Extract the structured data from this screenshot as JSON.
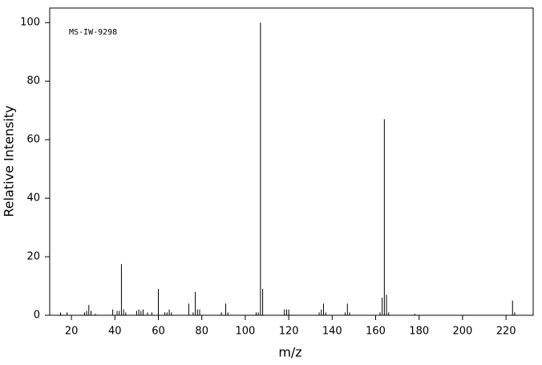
{
  "chart_data": {
    "type": "stick",
    "annotation": "MS-IW-9298",
    "xlabel": "m/z",
    "ylabel": "Relative Intensity",
    "color": "#000000",
    "x": [
      15,
      18,
      26,
      27,
      28,
      29,
      31,
      39,
      41,
      42,
      43,
      44,
      45,
      50,
      51,
      52,
      53,
      55,
      57,
      60,
      63,
      64,
      65,
      66,
      74,
      76,
      77,
      78,
      79,
      89,
      91,
      92,
      105,
      106,
      107,
      108,
      118,
      119,
      120,
      134,
      135,
      136,
      137,
      146,
      147,
      148,
      162,
      163,
      164,
      165,
      166,
      178,
      223,
      224
    ],
    "values": [
      1,
      1,
      1,
      1.5,
      3.5,
      1.5,
      0.5,
      2,
      1.5,
      1.5,
      17.5,
      2,
      1,
      1.5,
      2,
      1.5,
      2,
      1,
      1,
      9,
      1,
      1,
      2,
      1,
      4,
      1,
      8,
      2,
      2,
      1,
      4,
      1,
      1,
      1,
      100,
      9,
      2,
      2,
      2,
      1,
      2,
      4,
      1,
      1,
      4,
      1,
      1,
      6,
      67,
      7,
      1,
      0.5,
      5,
      1
    ],
    "xlim": [
      10,
      232.5
    ],
    "ylim": [
      0,
      105
    ],
    "xticks": [
      20,
      40,
      60,
      80,
      100,
      120,
      140,
      160,
      180,
      200,
      220
    ],
    "yticks": [
      0,
      20,
      40,
      60,
      80,
      100
    ]
  }
}
